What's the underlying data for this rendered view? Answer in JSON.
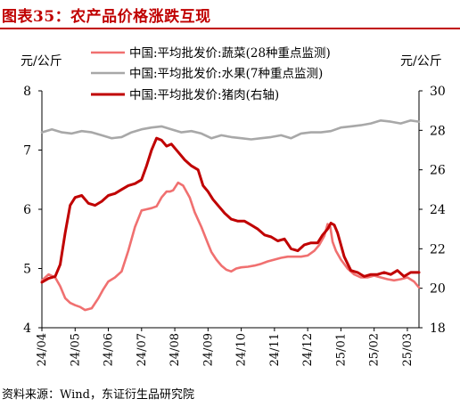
{
  "title": "图表35：农产品价格涨跌互现",
  "source": "资料来源：Wind，东证衍生品研究院",
  "chart_data": {
    "type": "line",
    "y_left_unit": "元/公斤",
    "y_right_unit": "元/公斤",
    "y_left_lim": [
      4,
      8
    ],
    "y_right_lim": [
      18,
      30
    ],
    "y_left_ticks": [
      "4",
      "5",
      "6",
      "7",
      "8"
    ],
    "y_right_ticks": [
      "18",
      "20",
      "22",
      "24",
      "26",
      "28",
      "30"
    ],
    "x_tick_labels": [
      "24/04",
      "24/05",
      "24/06",
      "24/07",
      "24/08",
      "24/09",
      "24/10",
      "24/11",
      "24/12",
      "25/01",
      "25/02",
      "25/03"
    ],
    "legend_position": "top-right",
    "series": [
      {
        "name": "中国:平均批发价:蔬菜(28种重点监测)",
        "axis": "left",
        "color": "#f07070",
        "x": [
          0,
          0.2,
          0.4,
          0.55,
          0.7,
          0.85,
          1.0,
          1.15,
          1.3,
          1.5,
          1.7,
          1.85,
          2.0,
          2.2,
          2.4,
          2.6,
          2.8,
          3.0,
          3.15,
          3.3,
          3.45,
          3.6,
          3.75,
          3.85,
          3.95,
          4.1,
          4.25,
          4.45,
          4.6,
          4.8,
          5.0,
          5.1,
          5.25,
          5.4,
          5.55,
          5.7,
          5.85,
          6.0,
          6.2,
          6.4,
          6.6,
          6.8,
          7.0,
          7.2,
          7.4,
          7.6,
          7.8,
          8.0,
          8.2,
          8.35,
          8.5,
          8.6,
          8.68,
          8.75,
          8.85,
          9.0,
          9.2,
          9.4,
          9.6,
          9.8,
          10.0,
          10.2,
          10.4,
          10.6,
          10.8,
          11.0,
          11.2,
          11.35
        ],
        "values": [
          4.8,
          4.9,
          4.85,
          4.7,
          4.5,
          4.42,
          4.38,
          4.35,
          4.3,
          4.33,
          4.5,
          4.65,
          4.78,
          4.85,
          4.95,
          5.3,
          5.7,
          5.98,
          6.0,
          6.02,
          6.05,
          6.2,
          6.3,
          6.3,
          6.32,
          6.45,
          6.4,
          6.2,
          5.95,
          5.7,
          5.42,
          5.28,
          5.15,
          5.05,
          4.98,
          4.95,
          5.0,
          5.02,
          5.03,
          5.05,
          5.08,
          5.12,
          5.15,
          5.18,
          5.2,
          5.2,
          5.2,
          5.22,
          5.3,
          5.4,
          5.55,
          5.75,
          5.7,
          5.45,
          5.3,
          5.15,
          5.0,
          4.9,
          4.85,
          4.85,
          4.88,
          4.85,
          4.82,
          4.8,
          4.82,
          4.85,
          4.78,
          4.68
        ]
      },
      {
        "name": "中国:平均批发价:水果(7种重点监测)",
        "axis": "left",
        "color": "#a8a8a8",
        "x": [
          0,
          0.3,
          0.6,
          0.9,
          1.2,
          1.5,
          1.8,
          2.1,
          2.4,
          2.7,
          3.0,
          3.3,
          3.6,
          3.9,
          4.2,
          4.5,
          4.8,
          5.1,
          5.4,
          5.7,
          6.0,
          6.3,
          6.6,
          6.9,
          7.2,
          7.5,
          7.8,
          8.1,
          8.4,
          8.7,
          9.0,
          9.3,
          9.6,
          9.9,
          10.2,
          10.5,
          10.8,
          11.1,
          11.35
        ],
        "values": [
          7.3,
          7.35,
          7.3,
          7.28,
          7.32,
          7.3,
          7.25,
          7.2,
          7.22,
          7.3,
          7.35,
          7.38,
          7.4,
          7.35,
          7.3,
          7.32,
          7.28,
          7.2,
          7.25,
          7.22,
          7.2,
          7.18,
          7.2,
          7.22,
          7.25,
          7.2,
          7.28,
          7.3,
          7.3,
          7.32,
          7.38,
          7.4,
          7.42,
          7.45,
          7.5,
          7.48,
          7.45,
          7.5,
          7.48
        ]
      },
      {
        "name": "中国:平均批发价:猪肉(右轴)",
        "axis": "right",
        "color": "#c00000",
        "x": [
          0,
          0.2,
          0.4,
          0.55,
          0.7,
          0.85,
          1.0,
          1.2,
          1.4,
          1.6,
          1.8,
          2.0,
          2.2,
          2.4,
          2.6,
          2.8,
          3.0,
          3.15,
          3.3,
          3.45,
          3.6,
          3.75,
          3.9,
          4.1,
          4.3,
          4.5,
          4.7,
          4.85,
          5.0,
          5.15,
          5.3,
          5.5,
          5.7,
          5.9,
          6.1,
          6.3,
          6.5,
          6.7,
          6.9,
          7.1,
          7.3,
          7.5,
          7.7,
          7.9,
          8.1,
          8.3,
          8.45,
          8.6,
          8.7,
          8.8,
          8.9,
          9.0,
          9.1,
          9.3,
          9.5,
          9.7,
          9.9,
          10.1,
          10.3,
          10.5,
          10.7,
          10.9,
          11.1,
          11.35
        ],
        "values": [
          20.3,
          20.5,
          20.6,
          21.2,
          22.8,
          24.2,
          24.6,
          24.7,
          24.3,
          24.2,
          24.4,
          24.7,
          24.8,
          25.0,
          25.2,
          25.3,
          25.5,
          26.2,
          27.0,
          27.6,
          27.5,
          27.2,
          27.3,
          26.9,
          26.5,
          26.2,
          26.0,
          25.2,
          24.9,
          24.5,
          24.2,
          23.8,
          23.5,
          23.4,
          23.4,
          23.2,
          23.0,
          22.7,
          22.6,
          22.4,
          22.5,
          22.0,
          21.9,
          22.2,
          22.3,
          22.3,
          22.7,
          23.0,
          23.3,
          23.2,
          22.8,
          22.2,
          21.6,
          20.9,
          20.8,
          20.6,
          20.7,
          20.7,
          20.8,
          20.7,
          20.9,
          20.6,
          20.8,
          20.8
        ]
      }
    ]
  }
}
